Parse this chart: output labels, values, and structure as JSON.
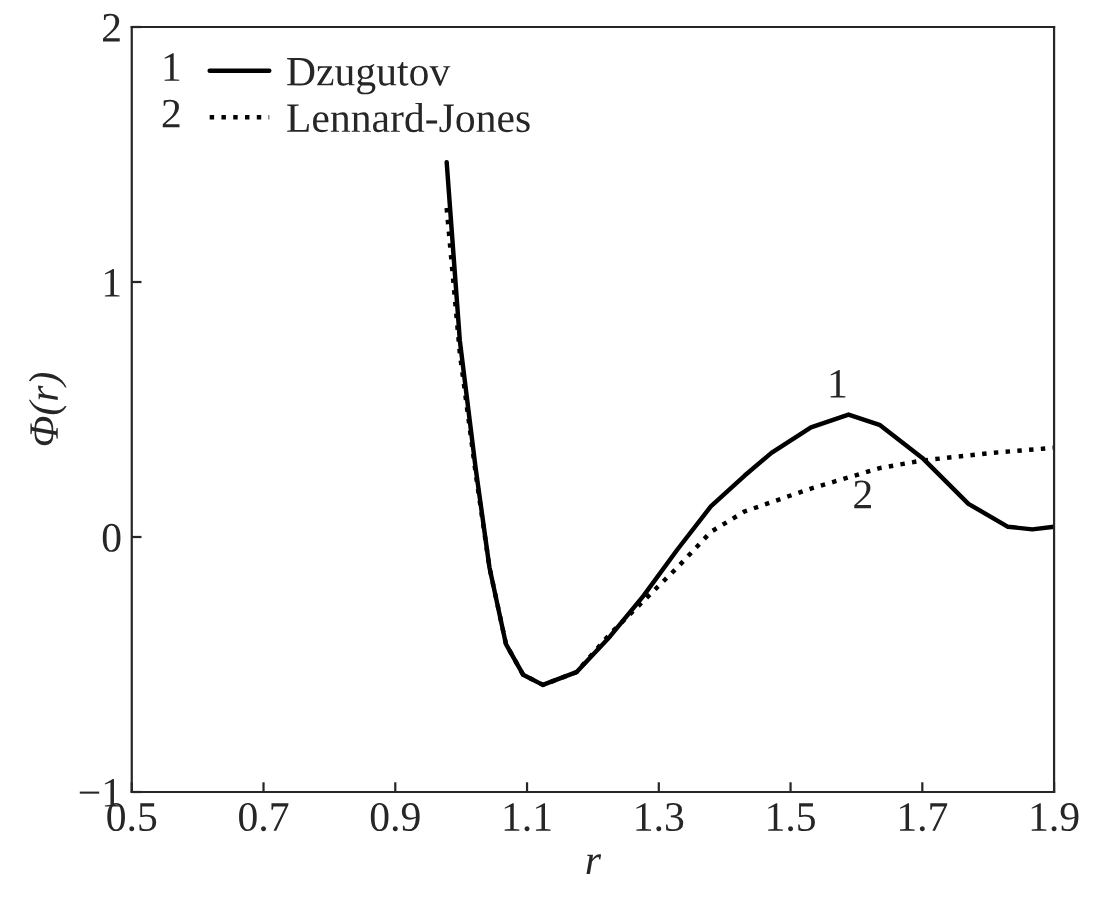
{
  "chart_data": {
    "type": "line",
    "xlabel": "r",
    "ylabel": "Φ(r)",
    "xlim": [
      0.5,
      1.9
    ],
    "xticks": [
      0.5,
      0.7,
      0.9,
      1.1,
      1.3,
      1.5,
      1.7,
      1.9
    ],
    "ylim": [
      -1,
      2
    ],
    "yticks": [
      -1,
      0,
      1,
      2
    ],
    "grid": false,
    "legend": "top left",
    "series": [
      {
        "name": "Dzugutov",
        "color": "#000000",
        "line_style": "solid",
        "x": [
          0.978,
          0.998,
          1.022,
          1.043,
          1.068,
          1.094,
          1.124,
          1.175,
          1.226,
          1.277,
          1.328,
          1.379,
          1.43,
          1.471,
          1.531,
          1.588,
          1.635,
          1.7,
          1.77,
          1.83,
          1.867,
          1.9
        ],
        "values": [
          1.47,
          0.77,
          0.27,
          -0.12,
          -0.42,
          -0.54,
          -0.58,
          -0.53,
          -0.39,
          -0.23,
          -0.05,
          0.12,
          0.24,
          0.33,
          0.43,
          0.48,
          0.44,
          0.31,
          0.13,
          0.04,
          0.03,
          0.04
        ]
      },
      {
        "name": "Lennard-Jones",
        "color": "#000000",
        "line_style": "dotted",
        "x": [
          0.978,
          0.998,
          1.022,
          1.043,
          1.068,
          1.094,
          1.124,
          1.175,
          1.226,
          1.277,
          1.328,
          1.379,
          1.43,
          1.531,
          1.635,
          1.7,
          1.806,
          1.9
        ],
        "values": [
          1.29,
          0.72,
          0.25,
          -0.12,
          -0.42,
          -0.54,
          -0.58,
          -0.53,
          -0.38,
          -0.25,
          -0.12,
          0.02,
          0.1,
          0.19,
          0.27,
          0.3,
          0.33,
          0.35
        ]
      }
    ],
    "annotations": [
      "1",
      "2"
    ]
  }
}
